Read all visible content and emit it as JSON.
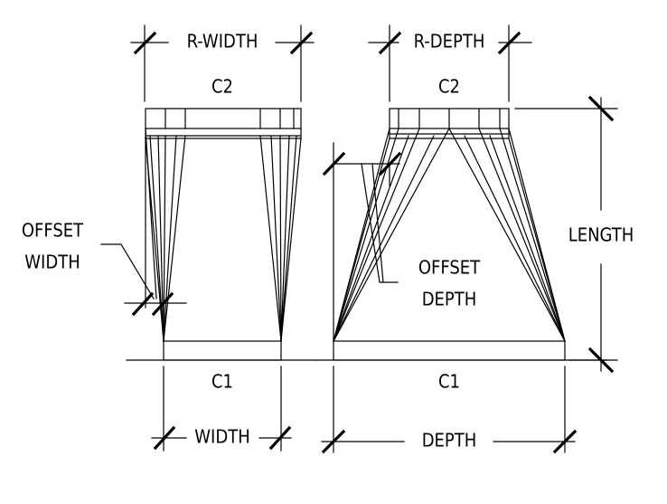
{
  "left_view": {
    "dim_r_width": "R-WIDTH",
    "top_label": "C2",
    "bottom_label": "C1",
    "dim_width": "WIDTH",
    "offset_label_line1": "OFFSET",
    "offset_label_line2": "WIDTH"
  },
  "right_view": {
    "dim_r_depth": "R-DEPTH",
    "top_label": "C2",
    "bottom_label": "C1",
    "dim_depth": "DEPTH",
    "dim_length": "LENGTH",
    "offset_label_line1": "OFFSET",
    "offset_label_line2": "DEPTH"
  }
}
